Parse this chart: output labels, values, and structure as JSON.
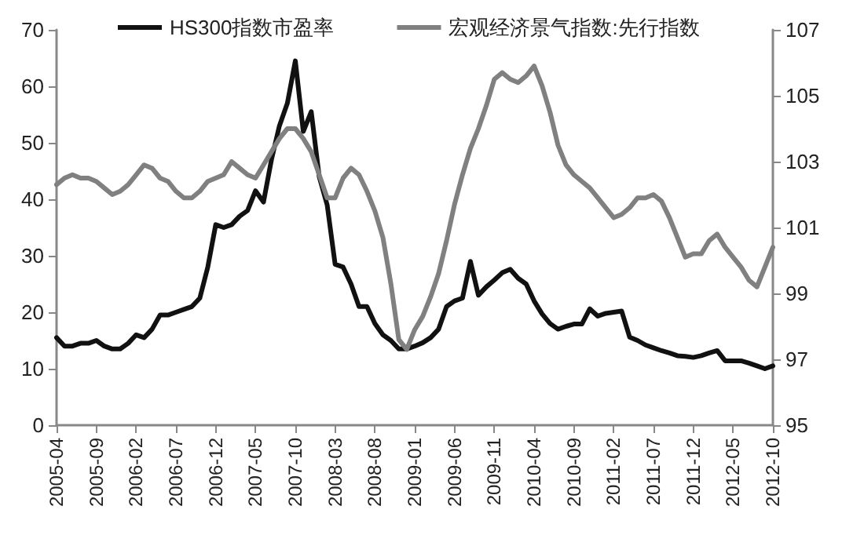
{
  "chart_data": {
    "type": "line",
    "categories": [
      "2005-04",
      null,
      null,
      null,
      null,
      "2005-09",
      null,
      null,
      null,
      null,
      "2006-02",
      null,
      null,
      null,
      null,
      "2006-07",
      null,
      null,
      null,
      null,
      "2006-12",
      null,
      null,
      null,
      null,
      "2007-05",
      null,
      null,
      null,
      null,
      "2007-10",
      null,
      null,
      null,
      null,
      "2008-03",
      null,
      null,
      null,
      null,
      "2008-08",
      null,
      null,
      null,
      null,
      "2009-01",
      null,
      null,
      null,
      null,
      "2009-06",
      null,
      null,
      null,
      null,
      "2009-11",
      null,
      null,
      null,
      null,
      "2010-04",
      null,
      null,
      null,
      null,
      "2010-09",
      null,
      null,
      null,
      null,
      "2011-02",
      null,
      null,
      null,
      null,
      "2011-07",
      null,
      null,
      null,
      null,
      "2011-12",
      null,
      null,
      null,
      null,
      "2012-05",
      null,
      null,
      null,
      null,
      "2012-10"
    ],
    "series": [
      {
        "name": "HS300指数市盈率",
        "color": "#111111",
        "values": [
          15.5,
          14,
          14,
          14.5,
          14.5,
          15,
          14,
          13.5,
          13.5,
          14.5,
          16,
          15.5,
          17,
          19.5,
          19.5,
          20,
          20.5,
          21,
          22.5,
          28,
          35.5,
          35,
          35.5,
          37,
          38,
          41.5,
          39.5,
          47,
          53,
          57,
          64.5,
          52,
          55.5,
          44,
          39,
          28.5,
          28,
          25,
          21,
          21,
          18,
          16,
          15,
          13.5,
          13.5,
          14,
          14.6,
          15.5,
          17,
          21,
          22,
          22.5,
          29,
          23,
          24.5,
          25.7,
          27,
          27.6,
          26,
          25,
          22,
          19.7,
          18,
          17,
          17.5,
          17.9,
          17.9,
          20.6,
          19.3,
          19.8,
          20,
          20.2,
          15.6,
          15,
          14.2,
          13.7,
          13.2,
          12.8,
          12.3,
          12.2,
          12,
          12.3,
          12.8,
          13.2,
          11.4,
          11.4,
          11.4,
          11,
          10.5,
          10,
          10.5
        ]
      },
      {
        "name": "宏观经济景气指数:先行指数",
        "color": "#808080",
        "axis": "y2",
        "values": [
          102.3,
          102.5,
          102.6,
          102.5,
          102.5,
          102.4,
          102.2,
          102.0,
          102.1,
          102.3,
          102.6,
          102.9,
          102.8,
          102.5,
          102.4,
          102.1,
          101.9,
          101.9,
          102.1,
          102.4,
          102.5,
          102.6,
          103.0,
          102.8,
          102.6,
          102.5,
          102.9,
          103.3,
          103.7,
          104.0,
          104.0,
          103.7,
          103.3,
          102.6,
          101.9,
          101.9,
          102.5,
          102.8,
          102.6,
          102.1,
          101.5,
          100.7,
          99.3,
          97.6,
          97.3,
          97.9,
          98.3,
          98.9,
          99.6,
          100.6,
          101.7,
          102.6,
          103.4,
          104.0,
          104.7,
          105.5,
          105.7,
          105.5,
          105.4,
          105.6,
          105.9,
          105.3,
          104.5,
          103.5,
          102.9,
          102.6,
          102.4,
          102.2,
          101.9,
          101.6,
          101.3,
          101.4,
          101.6,
          101.9,
          101.9,
          102.0,
          101.8,
          101.3,
          100.7,
          100.1,
          100.2,
          100.2,
          100.6,
          100.8,
          100.4,
          100.1,
          99.8,
          99.4,
          99.2,
          99.8,
          100.4
        ]
      }
    ],
    "ylim": [
      0,
      70
    ],
    "yticks": [
      0,
      10,
      20,
      30,
      40,
      50,
      60,
      70
    ],
    "y2lim": [
      95,
      107
    ],
    "y2ticks": [
      95,
      97,
      99,
      101,
      103,
      105,
      107
    ],
    "legend": "top",
    "grid": false,
    "marker": "none",
    "line_style": "solid"
  }
}
